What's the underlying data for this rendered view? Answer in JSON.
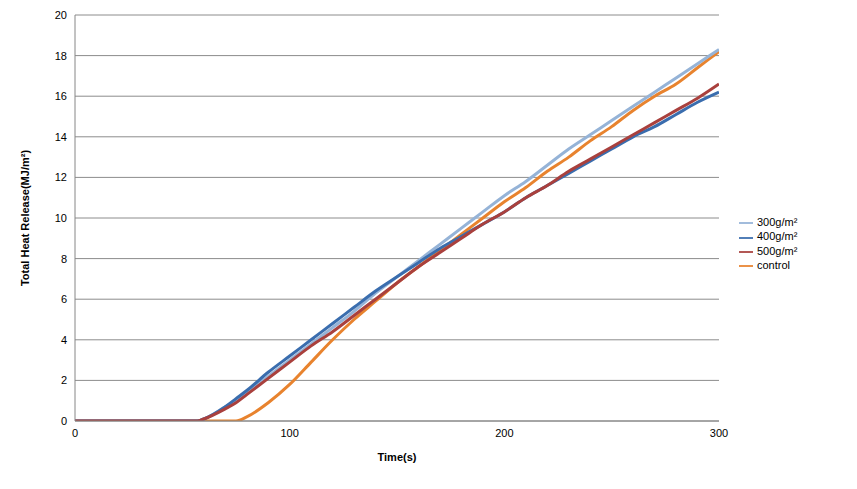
{
  "chart_data": {
    "type": "line",
    "x_label": "Time(s)",
    "y_label": "Total Heat Release(MJ/m²)",
    "x": [
      0,
      50,
      57,
      60,
      70,
      75,
      80,
      90,
      100,
      110,
      120,
      130,
      140,
      150,
      160,
      170,
      180,
      190,
      200,
      210,
      220,
      230,
      240,
      250,
      260,
      270,
      280,
      290,
      300
    ],
    "series": [
      {
        "name": "control",
        "color": "#E8832E",
        "values": [
          0,
          0,
          0,
          0,
          0,
          0,
          0.2,
          0.9,
          1.8,
          2.9,
          4.0,
          5.0,
          5.9,
          6.8,
          7.6,
          8.4,
          9.2,
          10.0,
          10.8,
          11.5,
          12.3,
          13.0,
          13.8,
          14.5,
          15.3,
          16.0,
          16.6,
          17.4,
          18.2
        ]
      },
      {
        "name": "300g/m²",
        "color": "#95B3D7",
        "values": [
          0,
          0,
          0,
          0.1,
          0.7,
          1.0,
          1.4,
          2.2,
          3.0,
          3.8,
          4.6,
          5.4,
          6.3,
          7.1,
          7.9,
          8.7,
          9.5,
          10.3,
          11.1,
          11.8,
          12.6,
          13.4,
          14.1,
          14.8,
          15.5,
          16.2,
          16.9,
          17.6,
          18.3
        ]
      },
      {
        "name": "400g/m²",
        "color": "#3A6DAE",
        "values": [
          0,
          0,
          0,
          0.1,
          0.7,
          1.1,
          1.5,
          2.4,
          3.2,
          4.0,
          4.8,
          5.6,
          6.4,
          7.1,
          7.8,
          8.5,
          9.1,
          9.7,
          10.3,
          11.0,
          11.6,
          12.2,
          12.8,
          13.4,
          14.0,
          14.5,
          15.1,
          15.7,
          16.2
        ]
      },
      {
        "name": "500g/m²",
        "color": "#A9403D",
        "values": [
          0,
          0,
          0,
          0.1,
          0.6,
          0.9,
          1.3,
          2.1,
          2.9,
          3.7,
          4.4,
          5.2,
          6.0,
          6.8,
          7.6,
          8.3,
          9.0,
          9.7,
          10.3,
          11.0,
          11.6,
          12.3,
          12.9,
          13.5,
          14.1,
          14.7,
          15.3,
          15.9,
          16.6
        ]
      }
    ],
    "xlim": [
      0,
      300
    ],
    "xticks": [
      0,
      100,
      200,
      300
    ],
    "ylim": [
      0,
      20
    ],
    "yticks": [
      0,
      2,
      4,
      6,
      8,
      10,
      12,
      14,
      16,
      18,
      20
    ],
    "grid": true,
    "legend": "right"
  }
}
